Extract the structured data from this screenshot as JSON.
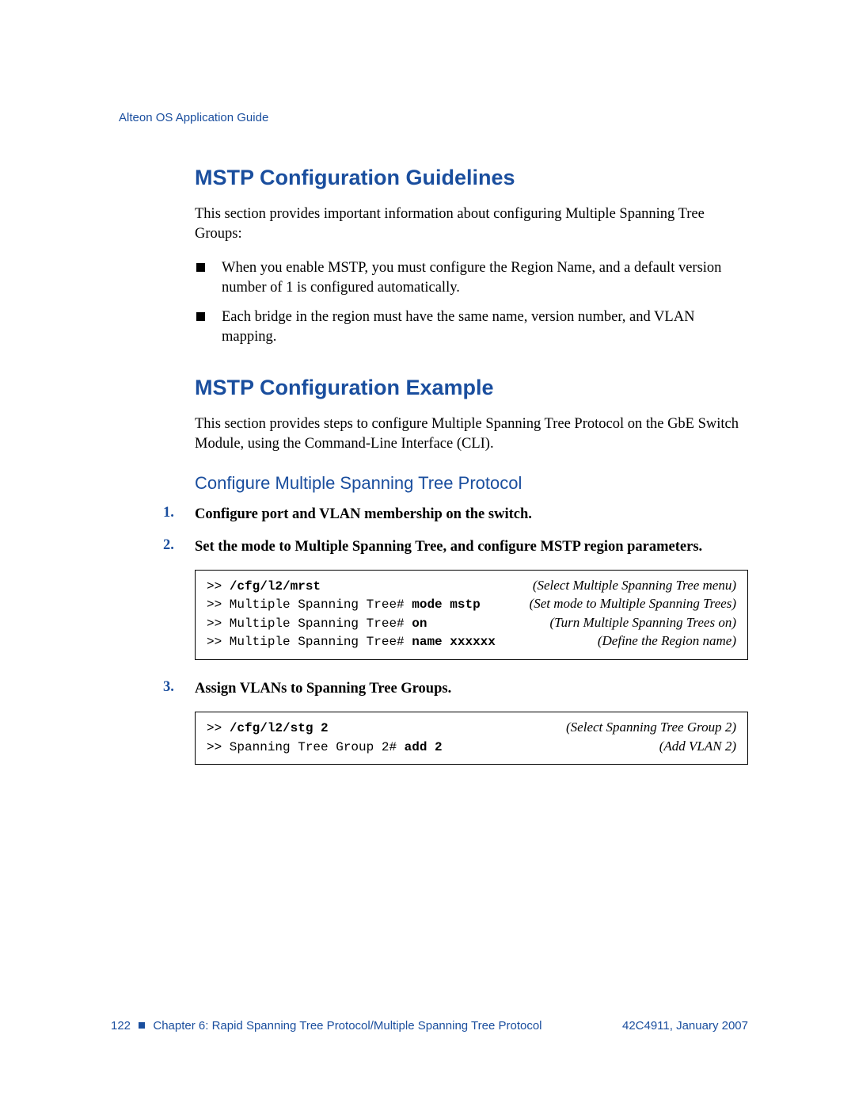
{
  "colors": {
    "brand_blue": "#1a4e9e",
    "body_text": "#000000",
    "background": "#ffffff",
    "codebox_border": "#000000"
  },
  "typography": {
    "body_font": "Times New Roman",
    "heading_font": "Myriad Pro / Segoe UI",
    "mono_font": "Courier New",
    "h2_fontsize_pt": 20,
    "h3_fontsize_pt": 16,
    "body_fontsize_pt": 14,
    "mono_fontsize_pt": 12,
    "footer_fontsize_pt": 11
  },
  "header": {
    "running": "Alteon OS Application Guide"
  },
  "sections": {
    "guidelines": {
      "title": "MSTP Configuration Guidelines",
      "intro": "This section provides important information about configuring Multiple Spanning Tree Groups:",
      "bullets": [
        "When you enable MSTP, you must configure the Region Name, and a default version number of 1 is configured automatically.",
        "Each bridge in the region must have the same name, version number, and VLAN mapping."
      ]
    },
    "example": {
      "title": "MSTP Configuration Example",
      "intro": "This section provides steps to configure Multiple Spanning Tree Protocol on the GbE Switch Module, using the Command-Line Interface (CLI).",
      "subhead": "Configure Multiple Spanning Tree Protocol",
      "steps": {
        "s1": {
          "num": "1.",
          "text": "Configure port and VLAN membership on the switch."
        },
        "s2": {
          "num": "2.",
          "text": "Set the mode to Multiple Spanning Tree, and configure MSTP region parameters."
        },
        "s3": {
          "num": "3.",
          "text": "Assign VLANs to Spanning Tree Groups."
        }
      },
      "code1": {
        "rows": [
          {
            "prefix": ">> ",
            "cmd": "/cfg/l2/mrst",
            "bold_all": true,
            "comment": "(Select Multiple Spanning Tree menu)"
          },
          {
            "prefix": ">> Multiple Spanning Tree# ",
            "cmd": "mode mstp",
            "bold_all": false,
            "comment": "(Set mode to Multiple Spanning Trees)"
          },
          {
            "prefix": ">> Multiple Spanning Tree# ",
            "cmd": "on",
            "bold_all": false,
            "comment": "(Turn Multiple Spanning Trees on)"
          },
          {
            "prefix": ">> Multiple Spanning Tree# ",
            "cmd": "name xxxxxx",
            "bold_all": false,
            "comment": "(Define the Region name)"
          }
        ]
      },
      "code2": {
        "rows": [
          {
            "prefix": ">> ",
            "cmd": "/cfg/l2/stg 2",
            "bold_all": true,
            "comment": "(Select Spanning Tree Group 2)"
          },
          {
            "prefix": ">> Spanning Tree Group 2# ",
            "cmd": "add 2",
            "bold_all": false,
            "comment": "(Add VLAN 2)"
          }
        ]
      }
    }
  },
  "footer": {
    "page_number": "122",
    "chapter": "Chapter 6: Rapid Spanning Tree Protocol/Multiple Spanning Tree Protocol",
    "docref": "42C4911, January 2007"
  }
}
